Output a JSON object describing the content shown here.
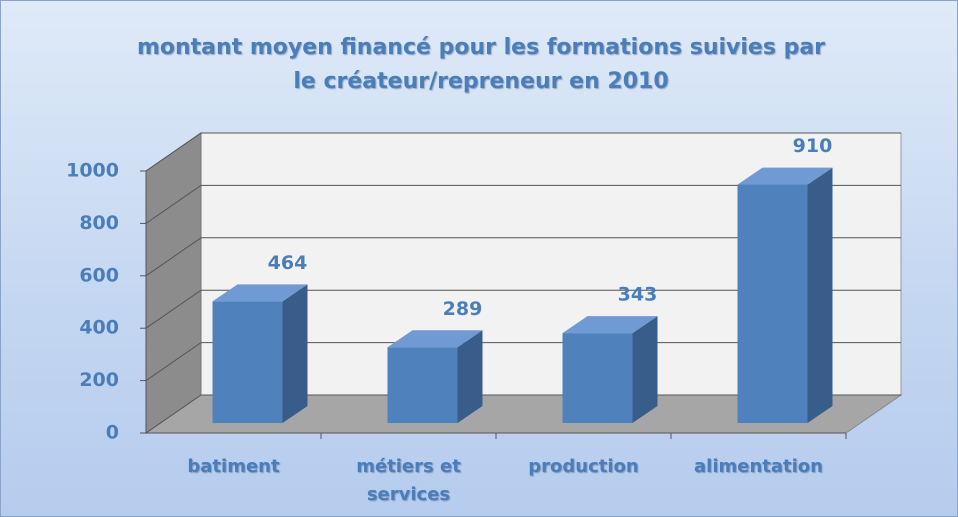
{
  "chart_data": {
    "type": "bar3d",
    "title": "montant moyen financé pour les formations suivies par le créateur/repreneur en 2010",
    "categories": [
      "batiment",
      "métiers et services",
      "production",
      "alimentation"
    ],
    "values": [
      464,
      289,
      343,
      910
    ],
    "color": "#4f81bd",
    "ylim": [
      0,
      1000
    ],
    "yticks": [
      0,
      200,
      400,
      600,
      800,
      1000
    ],
    "grid": true
  }
}
